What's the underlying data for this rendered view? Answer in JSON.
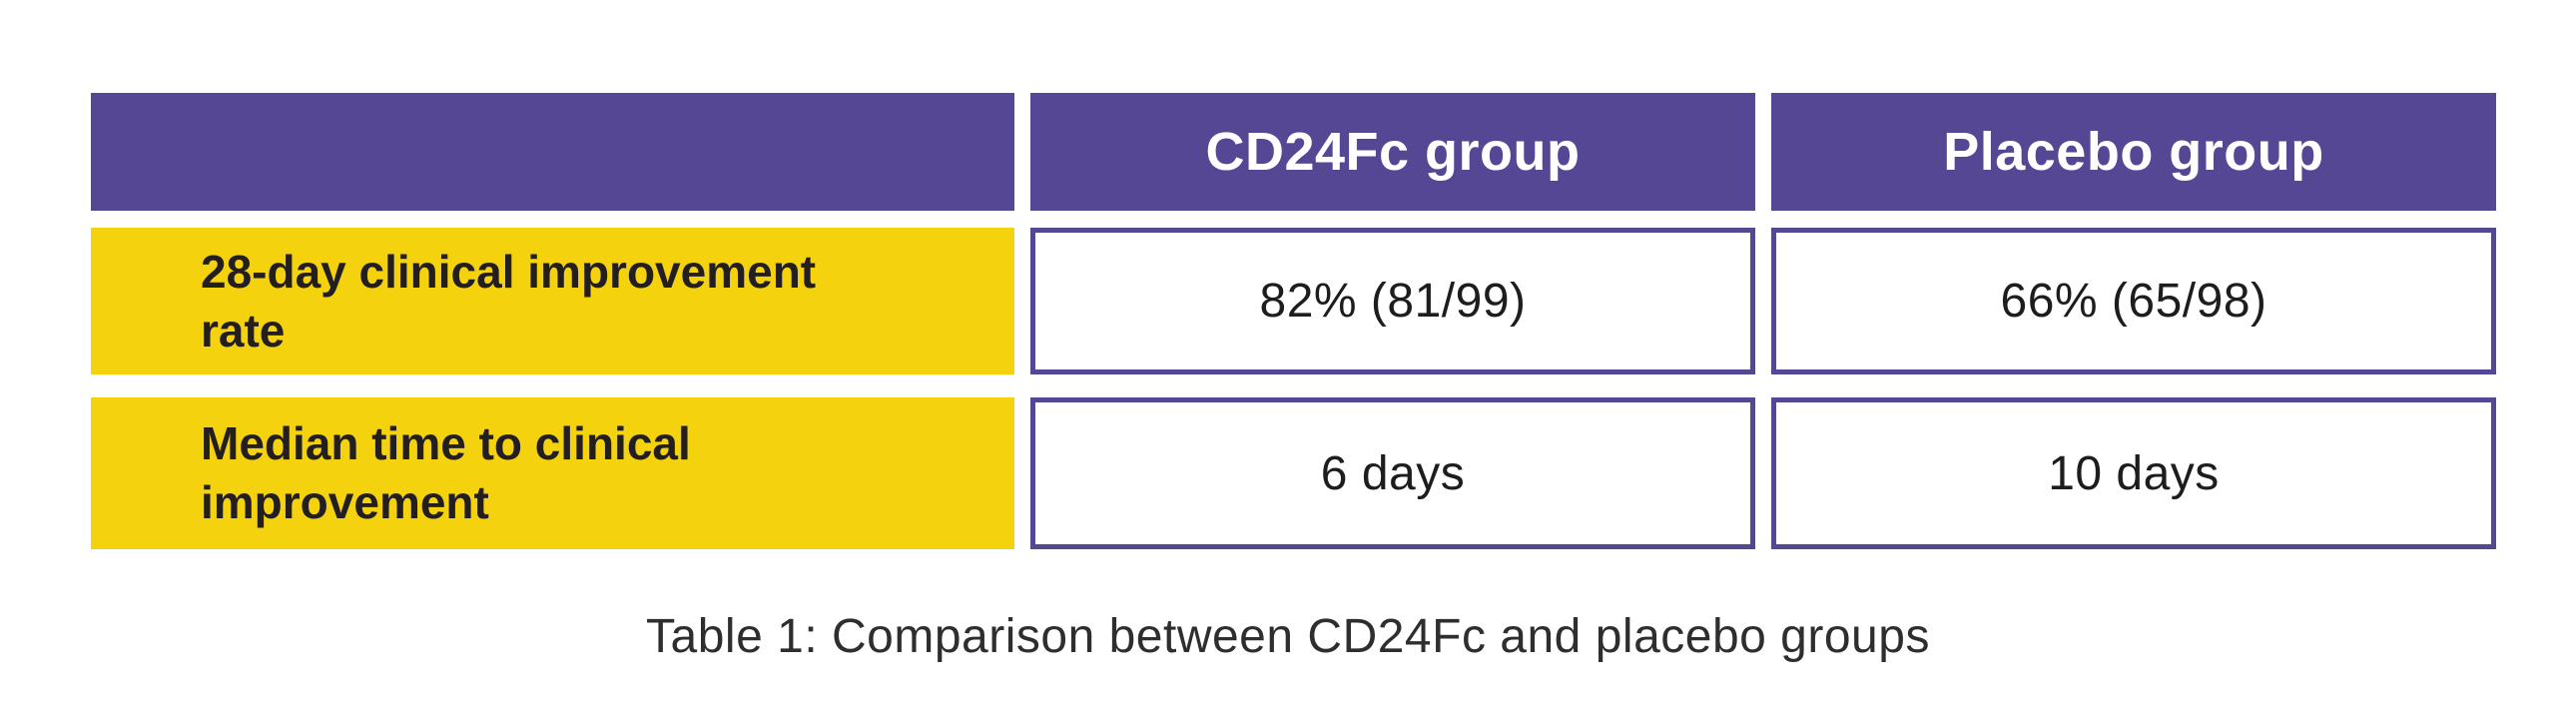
{
  "page": {
    "background": "#ffffff"
  },
  "colors": {
    "header_fill": "#564795",
    "cell_border": "#564795",
    "label_fill": "#F5D20E",
    "header_text": "#ffffff",
    "label_text": "#231f20",
    "value_text": "#1d1d1d",
    "caption_text": "#2e2e2e"
  },
  "chart_data": {
    "type": "table",
    "title": "Table 1: Comparison between CD24Fc and placebo groups",
    "columns": [
      "",
      "CD24Fc group",
      "Placebo group"
    ],
    "rows": [
      [
        "28-day clinical improvement rate",
        "82% (81/99)",
        "66% (65/98)"
      ],
      [
        "Median time to clinical improvement",
        "6 days",
        "10 days"
      ]
    ]
  },
  "table": {
    "columns": [
      {
        "label": ""
      },
      {
        "label": "CD24Fc group"
      },
      {
        "label": "Placebo group"
      }
    ],
    "rows": [
      {
        "label": "28-day clinical improvement rate",
        "values": [
          "82% (81/99)",
          "66% (65/98)"
        ]
      },
      {
        "label": "Median time to clinical improvement",
        "values": [
          "6 days",
          "10 days"
        ]
      }
    ]
  },
  "caption": "Table 1: Comparison between CD24Fc and placebo groups"
}
